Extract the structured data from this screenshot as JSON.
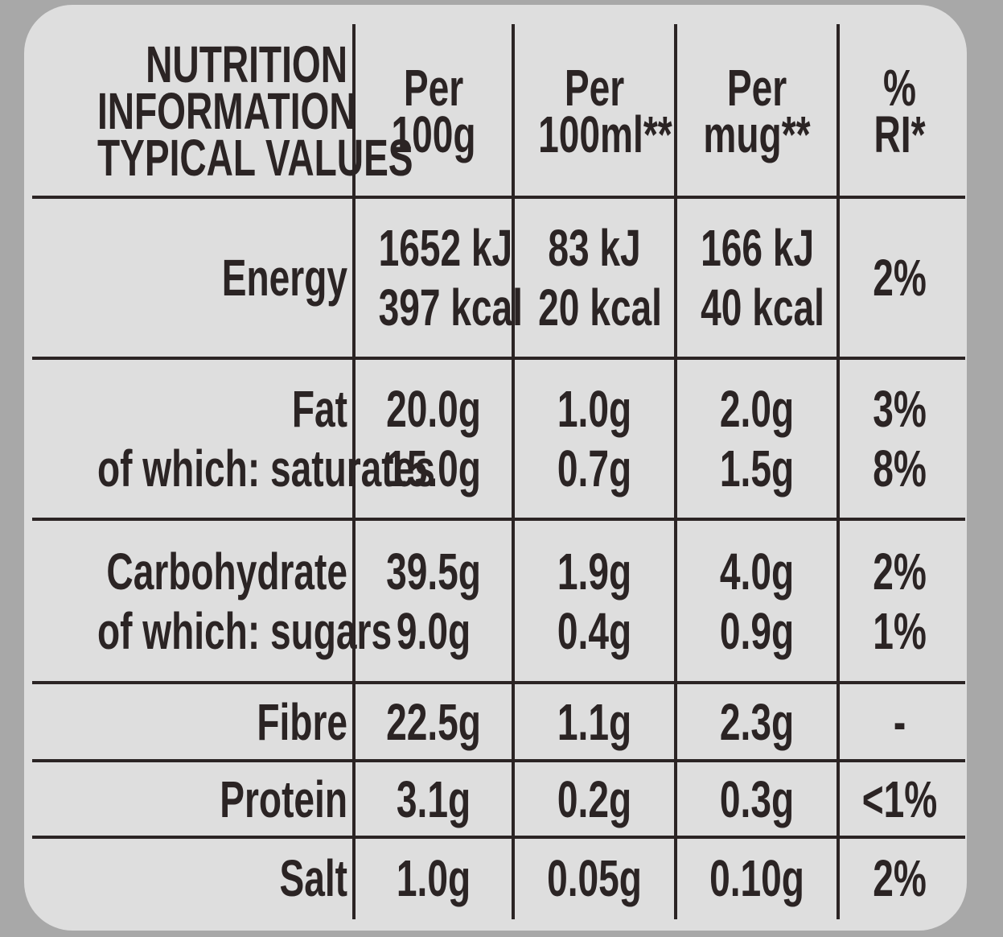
{
  "table": {
    "header": [
      [
        "NUTRITION",
        "INFORMATION",
        "TYPICAL VALUES"
      ],
      [
        "Per",
        "100g"
      ],
      [
        "Per",
        "100ml**"
      ],
      [
        "Per",
        "mug**"
      ],
      [
        "%",
        "RI*"
      ]
    ],
    "rows": [
      [
        [
          "Energy"
        ],
        [
          "1652 kJ",
          "397 kcal"
        ],
        [
          "83 kJ",
          "20 kcal"
        ],
        [
          "166 kJ",
          "40 kcal"
        ],
        [
          "2%"
        ]
      ],
      [
        [
          "Fat",
          "of which: saturates"
        ],
        [
          "20.0g",
          "15.0g"
        ],
        [
          "1.0g",
          "0.7g"
        ],
        [
          "2.0g",
          "1.5g"
        ],
        [
          "3%",
          "8%"
        ]
      ],
      [
        [
          "Carbohydrate",
          "of which: sugars"
        ],
        [
          "39.5g",
          "9.0g"
        ],
        [
          "1.9g",
          "0.4g"
        ],
        [
          "4.0g",
          "0.9g"
        ],
        [
          "2%",
          "1%"
        ]
      ],
      [
        [
          "Fibre"
        ],
        [
          "22.5g"
        ],
        [
          "1.1g"
        ],
        [
          "2.3g"
        ],
        [
          "-"
        ]
      ],
      [
        [
          "Protein"
        ],
        [
          "3.1g"
        ],
        [
          "0.2g"
        ],
        [
          "0.3g"
        ],
        [
          "<1%"
        ]
      ],
      [
        [
          "Salt"
        ],
        [
          "1.0g"
        ],
        [
          "0.05g"
        ],
        [
          "0.10g"
        ],
        [
          "2%"
        ]
      ]
    ]
  }
}
